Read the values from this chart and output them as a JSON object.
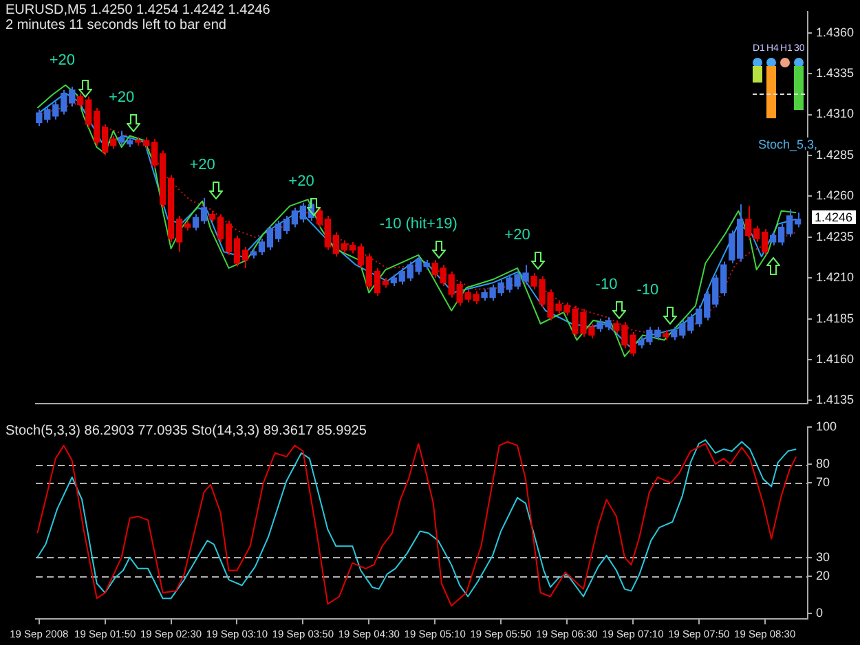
{
  "chart_data": [
    {
      "type": "candlestick",
      "title": "EURUSD,M5  1.4250 1.4254 1.4242 1.4246",
      "subtitle": "2 minutes 11 seconds left to bar end",
      "marker": "none",
      "tick_labels": "y",
      "xlim": [
        "2008-09-19T01:08",
        "2008-09-19T08:56"
      ],
      "ylim": [
        1.4133,
        1.4373
      ],
      "yticks": [
        1.4135,
        {
          "value": 1.416,
          "label": "1.4160"
        },
        1.4185,
        {
          "value": 1.421,
          "label": "1.4210"
        },
        1.4235,
        {
          "value": 1.426,
          "label": "1.4260"
        },
        1.4285,
        {
          "value": 1.431,
          "label": "1.4310"
        },
        1.4335,
        {
          "value": 1.436,
          "label": "1.4360"
        }
      ],
      "x": [
        "2008-09-19T01:10",
        "2008-09-19T01:15",
        "2008-09-19T01:20",
        "2008-09-19T01:25",
        "2008-09-19T01:30",
        "2008-09-19T01:35",
        "2008-09-19T01:40",
        "2008-09-19T01:45",
        "2008-09-19T01:50",
        "2008-09-19T01:55",
        "2008-09-19T02:00",
        "2008-09-19T02:05",
        "2008-09-19T02:10",
        "2008-09-19T02:15",
        "2008-09-19T02:20",
        "2008-09-19T02:25",
        "2008-09-19T02:30",
        "2008-09-19T02:35",
        "2008-09-19T02:40",
        "2008-09-19T02:45",
        "2008-09-19T02:50",
        "2008-09-19T02:55",
        "2008-09-19T03:00",
        "2008-09-19T03:05",
        "2008-09-19T03:10",
        "2008-09-19T03:15",
        "2008-09-19T03:20",
        "2008-09-19T03:25",
        "2008-09-19T03:30",
        "2008-09-19T03:35",
        "2008-09-19T03:40",
        "2008-09-19T03:45",
        "2008-09-19T03:50",
        "2008-09-19T03:55",
        "2008-09-19T04:00",
        "2008-09-19T04:05",
        "2008-09-19T04:10",
        "2008-09-19T04:15",
        "2008-09-19T04:20",
        "2008-09-19T04:25",
        "2008-09-19T04:30",
        "2008-09-19T04:35",
        "2008-09-19T04:40",
        "2008-09-19T04:45",
        "2008-09-19T04:50",
        "2008-09-19T04:55",
        "2008-09-19T05:00",
        "2008-09-19T05:05",
        "2008-09-19T05:10",
        "2008-09-19T05:15",
        "2008-09-19T05:20",
        "2008-09-19T05:25",
        "2008-09-19T05:30",
        "2008-09-19T05:35",
        "2008-09-19T05:40",
        "2008-09-19T05:45",
        "2008-09-19T05:50",
        "2008-09-19T05:55",
        "2008-09-19T06:00",
        "2008-09-19T06:05",
        "2008-09-19T06:10",
        "2008-09-19T06:15",
        "2008-09-19T06:20",
        "2008-09-19T06:25",
        "2008-09-19T06:30",
        "2008-09-19T06:35",
        "2008-09-19T06:40",
        "2008-09-19T06:45",
        "2008-09-19T06:50",
        "2008-09-19T06:55",
        "2008-09-19T07:00",
        "2008-09-19T07:05",
        "2008-09-19T07:10",
        "2008-09-19T07:15",
        "2008-09-19T07:20",
        "2008-09-19T07:25",
        "2008-09-19T07:30",
        "2008-09-19T07:35",
        "2008-09-19T07:40",
        "2008-09-19T07:45",
        "2008-09-19T07:50",
        "2008-09-19T07:55",
        "2008-09-19T08:00",
        "2008-09-19T08:05",
        "2008-09-19T08:10",
        "2008-09-19T08:15",
        "2008-09-19T08:20",
        "2008-09-19T08:25",
        "2008-09-19T08:30",
        "2008-09-19T08:35",
        "2008-09-19T08:40",
        "2008-09-19T08:45",
        "2008-09-19T08:50"
      ],
      "ohlc": [
        [
          1.4305,
          1.4313,
          1.4303,
          1.4311
        ],
        [
          1.4307,
          1.4315,
          1.4305,
          1.4313
        ],
        [
          1.4309,
          1.4318,
          1.4307,
          1.4316
        ],
        [
          1.4312,
          1.4325,
          1.431,
          1.4323
        ],
        [
          1.4317,
          1.4327,
          1.4315,
          1.4325
        ],
        [
          1.4321,
          1.4323,
          1.4314,
          1.4316
        ],
        [
          1.4319,
          1.4321,
          1.4302,
          1.4304
        ],
        [
          1.4312,
          1.4314,
          1.4291,
          1.4293
        ],
        [
          1.4302,
          1.4304,
          1.4285,
          1.4287
        ],
        [
          1.4295,
          1.4297,
          1.4289,
          1.4291
        ],
        [
          1.4293,
          1.43,
          1.4291,
          1.4296
        ],
        [
          1.4292,
          1.4296,
          1.429,
          1.4294
        ],
        [
          1.4294,
          1.4296,
          1.4291,
          1.4293
        ],
        [
          1.4294,
          1.4296,
          1.4289,
          1.4291
        ],
        [
          1.4293,
          1.4295,
          1.4277,
          1.4279
        ],
        [
          1.4286,
          1.4288,
          1.4253,
          1.4255
        ],
        [
          1.4271,
          1.4273,
          1.4232,
          1.4234
        ],
        [
          1.4246,
          1.4248,
          1.4226,
          1.4232
        ],
        [
          1.4243,
          1.4245,
          1.4239,
          1.4241
        ],
        [
          1.4241,
          1.4249,
          1.4239,
          1.4247
        ],
        [
          1.4245,
          1.4259,
          1.4243,
          1.4253
        ],
        [
          1.4249,
          1.4251,
          1.4244,
          1.4246
        ],
        [
          1.4247,
          1.4249,
          1.4232,
          1.4234
        ],
        [
          1.4243,
          1.4245,
          1.4224,
          1.4226
        ],
        [
          1.4234,
          1.4236,
          1.4217,
          1.4219
        ],
        [
          1.4227,
          1.4229,
          1.4216,
          1.4221
        ],
        [
          1.4224,
          1.4228,
          1.4222,
          1.4226
        ],
        [
          1.4226,
          1.4234,
          1.4224,
          1.4232
        ],
        [
          1.4229,
          1.4242,
          1.4227,
          1.424
        ],
        [
          1.4234,
          1.4245,
          1.4232,
          1.4243
        ],
        [
          1.4239,
          1.4248,
          1.4237,
          1.4246
        ],
        [
          1.4243,
          1.4253,
          1.4241,
          1.4251
        ],
        [
          1.4246,
          1.4256,
          1.4244,
          1.4254
        ],
        [
          1.4247,
          1.4258,
          1.4245,
          1.4255
        ],
        [
          1.4251,
          1.4253,
          1.4241,
          1.4243
        ],
        [
          1.4246,
          1.4248,
          1.4227,
          1.4229
        ],
        [
          1.4236,
          1.4238,
          1.4223,
          1.4225
        ],
        [
          1.4231,
          1.4233,
          1.4225,
          1.4227
        ],
        [
          1.423,
          1.4232,
          1.4225,
          1.4227
        ],
        [
          1.4229,
          1.4231,
          1.4216,
          1.4218
        ],
        [
          1.4223,
          1.4225,
          1.4203,
          1.4205
        ],
        [
          1.4214,
          1.4216,
          1.4199,
          1.4201
        ],
        [
          1.4208,
          1.421,
          1.4204,
          1.4206
        ],
        [
          1.4207,
          1.4212,
          1.4205,
          1.421
        ],
        [
          1.4208,
          1.4216,
          1.4206,
          1.4214
        ],
        [
          1.421,
          1.422,
          1.4208,
          1.4218
        ],
        [
          1.4214,
          1.4223,
          1.4212,
          1.4221
        ],
        [
          1.4217,
          1.4221,
          1.4215,
          1.4219
        ],
        [
          1.4219,
          1.4221,
          1.421,
          1.4212
        ],
        [
          1.4216,
          1.4218,
          1.4205,
          1.4207
        ],
        [
          1.4212,
          1.4214,
          1.4198,
          1.42
        ],
        [
          1.4206,
          1.4208,
          1.4193,
          1.4195
        ],
        [
          1.4201,
          1.4203,
          1.4195,
          1.4197
        ],
        [
          1.42,
          1.4202,
          1.4194,
          1.4196
        ],
        [
          1.4198,
          1.4203,
          1.4196,
          1.4201
        ],
        [
          1.4198,
          1.4206,
          1.4196,
          1.4204
        ],
        [
          1.4201,
          1.4209,
          1.4199,
          1.4207
        ],
        [
          1.4203,
          1.4212,
          1.4201,
          1.421
        ],
        [
          1.4205,
          1.4214,
          1.4203,
          1.4212
        ],
        [
          1.4208,
          1.4218,
          1.4206,
          1.4213
        ],
        [
          1.4211,
          1.4213,
          1.4203,
          1.4205
        ],
        [
          1.4209,
          1.4211,
          1.4192,
          1.4194
        ],
        [
          1.4201,
          1.4203,
          1.4184,
          1.4186
        ],
        [
          1.4194,
          1.4196,
          1.4188,
          1.419
        ],
        [
          1.4193,
          1.4195,
          1.4187,
          1.4189
        ],
        [
          1.4191,
          1.4193,
          1.4174,
          1.4176
        ],
        [
          1.4189,
          1.4191,
          1.4174,
          1.4176
        ],
        [
          1.418,
          1.4182,
          1.4173,
          1.4175
        ],
        [
          1.4179,
          1.4185,
          1.4177,
          1.4183
        ],
        [
          1.418,
          1.4186,
          1.4178,
          1.4184
        ],
        [
          1.4182,
          1.4184,
          1.4176,
          1.4178
        ],
        [
          1.4181,
          1.4183,
          1.4167,
          1.4169
        ],
        [
          1.4175,
          1.4177,
          1.4162,
          1.4164
        ],
        [
          1.4169,
          1.4174,
          1.4167,
          1.4172
        ],
        [
          1.4171,
          1.418,
          1.4169,
          1.4178
        ],
        [
          1.4174,
          1.418,
          1.4172,
          1.4178
        ],
        [
          1.4176,
          1.4178,
          1.4172,
          1.4174
        ],
        [
          1.4174,
          1.418,
          1.4172,
          1.4178
        ],
        [
          1.4175,
          1.4184,
          1.4173,
          1.4182
        ],
        [
          1.4178,
          1.4188,
          1.4176,
          1.4186
        ],
        [
          1.4182,
          1.4193,
          1.418,
          1.4191
        ],
        [
          1.4186,
          1.4202,
          1.4184,
          1.42
        ],
        [
          1.4194,
          1.4212,
          1.4192,
          1.421
        ],
        [
          1.4201,
          1.422,
          1.4199,
          1.4218
        ],
        [
          1.4221,
          1.4239,
          1.4219,
          1.4237
        ],
        [
          1.4222,
          1.4255,
          1.422,
          1.4246
        ],
        [
          1.4246,
          1.4254,
          1.4234,
          1.4236
        ],
        [
          1.424,
          1.4242,
          1.4232,
          1.4234
        ],
        [
          1.4238,
          1.424,
          1.4224,
          1.4226
        ],
        [
          1.4232,
          1.4238,
          1.423,
          1.4236
        ],
        [
          1.4232,
          1.4243,
          1.423,
          1.4241
        ],
        [
          1.4237,
          1.4252,
          1.4235,
          1.4248
        ],
        [
          1.4243,
          1.425,
          1.4241,
          1.4246
        ]
      ],
      "colors": [
        "#3b6fe0",
        "#3b6fe0",
        "#3b6fe0",
        "#3b6fe0",
        "#3b6fe0",
        "#e00000",
        "#e00000",
        "#e00000",
        "#e00000",
        "#e00000",
        "#3b6fe0",
        "#3b6fe0",
        "#e00000",
        "#e00000",
        "#e00000",
        "#e00000",
        "#e00000",
        "#e00000",
        "#e00000",
        "#3b6fe0",
        "#3b6fe0",
        "#e00000",
        "#e00000",
        "#e00000",
        "#e00000",
        "#e00000",
        "#3b6fe0",
        "#3b6fe0",
        "#3b6fe0",
        "#3b6fe0",
        "#3b6fe0",
        "#3b6fe0",
        "#3b6fe0",
        "#3b6fe0",
        "#e00000",
        "#e00000",
        "#e00000",
        "#e00000",
        "#e00000",
        "#e00000",
        "#e00000",
        "#e00000",
        "#e00000",
        "#3b6fe0",
        "#3b6fe0",
        "#3b6fe0",
        "#3b6fe0",
        "#3b6fe0",
        "#e00000",
        "#e00000",
        "#e00000",
        "#e00000",
        "#e00000",
        "#e00000",
        "#3b6fe0",
        "#3b6fe0",
        "#3b6fe0",
        "#3b6fe0",
        "#3b6fe0",
        "#3b6fe0",
        "#e00000",
        "#e00000",
        "#e00000",
        "#e00000",
        "#e00000",
        "#e00000",
        "#e00000",
        "#e00000",
        "#3b6fe0",
        "#3b6fe0",
        "#e00000",
        "#e00000",
        "#e00000",
        "#3b6fe0",
        "#3b6fe0",
        "#3b6fe0",
        "#e00000",
        "#3b6fe0",
        "#3b6fe0",
        "#3b6fe0",
        "#3b6fe0",
        "#3b6fe0",
        "#3b6fe0",
        "#3b6fe0",
        "#3b6fe0",
        "#3b6fe0",
        "#e00000",
        "#e00000",
        "#e00000",
        "#3b6fe0",
        "#3b6fe0",
        "#3b6fe0",
        "#3b6fe0"
      ],
      "series": [
        {
          "type": "line",
          "color": "#3fd43f",
          "x": [
            "2008-09-19T01:09",
            "2008-09-19T01:18",
            "2008-09-19T01:26",
            "2008-09-19T01:33",
            "2008-09-19T01:37",
            "2008-09-19T01:45",
            "2008-09-19T01:50",
            "2008-09-19T01:55",
            "2008-09-19T02:00",
            "2008-09-19T02:05",
            "2008-09-19T02:14",
            "2008-09-19T02:20",
            "2008-09-19T02:25",
            "2008-09-19T02:30",
            "2008-09-19T02:36",
            "2008-09-19T02:44",
            "2008-09-19T02:49",
            "2008-09-19T02:54",
            "2008-09-19T03:05",
            "2008-09-19T03:16",
            "2008-09-19T03:26",
            "2008-09-19T03:42",
            "2008-09-19T03:53",
            "2008-09-19T04:01",
            "2008-09-19T04:09",
            "2008-09-19T04:24",
            "2008-09-19T04:30",
            "2008-09-19T04:40",
            "2008-09-19T05:00",
            "2008-09-19T05:05",
            "2008-09-19T05:20",
            "2008-09-19T05:29",
            "2008-09-19T05:45",
            "2008-09-19T06:00",
            "2008-09-19T06:14",
            "2008-09-19T06:28",
            "2008-09-19T06:36",
            "2008-09-19T06:46",
            "2008-09-19T06:57",
            "2008-09-19T07:05",
            "2008-09-19T07:16",
            "2008-09-19T07:29",
            "2008-09-19T07:40",
            "2008-09-19T07:48",
            "2008-09-19T07:54",
            "2008-09-19T08:06",
            "2008-09-19T08:14",
            "2008-09-19T08:21",
            "2008-09-19T08:25",
            "2008-09-19T08:32",
            "2008-09-19T08:40",
            "2008-09-19T08:49"
          ],
          "values": [
            1.4314,
            1.4322,
            1.4328,
            1.4322,
            1.4309,
            1.429,
            1.4286,
            1.43,
            1.429,
            1.4297,
            1.4294,
            1.4279,
            1.4251,
            1.4228,
            1.424,
            1.4251,
            1.4257,
            1.424,
            1.4216,
            1.4221,
            1.4237,
            1.4254,
            1.4258,
            1.424,
            1.4228,
            1.4221,
            1.4201,
            1.4215,
            1.4224,
            1.4217,
            1.419,
            1.4204,
            1.4209,
            1.4216,
            1.4182,
            1.4189,
            1.4172,
            1.4184,
            1.4182,
            1.4162,
            1.4175,
            1.4172,
            1.4184,
            1.4193,
            1.4219,
            1.4237,
            1.4251,
            1.4234,
            1.4215,
            1.4226,
            1.4251,
            1.425
          ]
        },
        {
          "type": "line",
          "color": "#2a9cf0",
          "x": [
            "2008-09-19T01:10",
            "2008-09-19T01:26",
            "2008-09-19T01:34",
            "2008-09-19T01:48",
            "2008-09-19T01:53",
            "2008-09-19T02:01",
            "2008-09-19T02:14",
            "2008-09-19T02:28",
            "2008-09-19T02:36",
            "2008-09-19T02:46",
            "2008-09-19T02:52",
            "2008-09-19T03:02",
            "2008-09-19T03:13",
            "2008-09-19T03:26",
            "2008-09-19T03:48",
            "2008-09-19T04:04",
            "2008-09-19T04:22",
            "2008-09-19T04:41",
            "2008-09-19T05:00",
            "2008-09-19T05:05",
            "2008-09-19T05:21",
            "2008-09-19T05:45",
            "2008-09-19T06:01",
            "2008-09-19T06:17",
            "2008-09-19T06:33",
            "2008-09-19T06:44",
            "2008-09-19T06:54",
            "2008-09-19T07:08",
            "2008-09-19T07:21",
            "2008-09-19T07:37",
            "2008-09-19T07:50",
            "2008-09-19T07:58",
            "2008-09-19T08:14",
            "2008-09-19T08:22",
            "2008-09-19T08:28",
            "2008-09-19T08:38",
            "2008-09-19T08:49"
          ],
          "values": [
            1.4311,
            1.4323,
            1.4318,
            1.4293,
            1.4293,
            1.4297,
            1.4293,
            1.4246,
            1.4243,
            1.4253,
            1.4251,
            1.4226,
            1.4223,
            1.4237,
            1.4251,
            1.4234,
            1.4218,
            1.4208,
            1.4222,
            1.4219,
            1.4201,
            1.4207,
            1.4214,
            1.419,
            1.4182,
            1.418,
            1.4182,
            1.4168,
            1.4175,
            1.4179,
            1.419,
            1.4209,
            1.4243,
            1.4237,
            1.4223,
            1.4243,
            1.4246
          ]
        },
        {
          "type": "line",
          "color": "#d01010",
          "line_style": "dotted",
          "x": [
            "2008-09-19T01:10",
            "2008-09-19T01:34",
            "2008-09-19T01:48",
            "2008-09-19T02:14",
            "2008-09-19T02:28",
            "2008-09-19T02:41",
            "2008-09-19T02:54",
            "2008-09-19T03:10",
            "2008-09-19T03:21",
            "2008-09-19T03:37",
            "2008-09-19T03:56",
            "2008-09-19T04:04",
            "2008-09-19T04:20",
            "2008-09-19T04:41",
            "2008-09-19T05:05",
            "2008-09-19T05:34",
            "2008-09-19T05:50",
            "2008-09-19T06:09",
            "2008-09-19T06:28",
            "2008-09-19T06:54",
            "2008-09-19T07:10",
            "2008-09-19T07:29",
            "2008-09-19T07:48",
            "2008-09-19T08:00",
            "2008-09-19T08:12",
            "2008-09-19T08:20",
            "2008-09-19T08:33",
            "2008-09-19T08:49"
          ],
          "values": [
            1.431,
            1.4317,
            1.4303,
            1.4293,
            1.4271,
            1.4258,
            1.4252,
            1.4239,
            1.4235,
            1.4241,
            1.4252,
            1.4239,
            1.4229,
            1.4216,
            1.4218,
            1.4203,
            1.4204,
            1.4208,
            1.4194,
            1.4186,
            1.4178,
            1.4175,
            1.4182,
            1.4193,
            1.4218,
            1.4225,
            1.4232,
            1.4238
          ]
        }
      ],
      "annotations": [
        "+20",
        "+20",
        "+20",
        "+20",
        "-10 (hit+19)",
        "+20",
        "-10",
        "-10",
        "1.4246",
        "D1",
        "H4",
        "H1",
        "30",
        "Stoch_5,3,"
      ]
    },
    {
      "type": "line",
      "title": "Stoch(5,3,3) 86.2903 77.0935  Sto(14,3,3) 89.3617 85.9925",
      "marker": "none",
      "xlim": [
        "2008-09-19T01:08",
        "2008-09-19T08:56"
      ],
      "xticks": [
        {
          "value": "2008-09-19T01:10",
          "label": "19 Sep 2008"
        },
        {
          "value": "2008-09-19T01:50",
          "label": "19 Sep 01:50"
        },
        {
          "value": "2008-09-19T02:30",
          "label": "19 Sep 02:30"
        },
        {
          "value": "2008-09-19T03:10",
          "label": "19 Sep 03:10"
        },
        {
          "value": "2008-09-19T03:50",
          "label": "19 Sep 03:50"
        },
        {
          "value": "2008-09-19T04:30",
          "label": "19 Sep 04:30"
        },
        {
          "value": "2008-09-19T05:10",
          "label": "19 Sep 05:10"
        },
        {
          "value": "2008-09-19T05:50",
          "label": "19 Sep 05:50"
        },
        {
          "value": "2008-09-19T06:30",
          "label": "19 Sep 06:30"
        },
        {
          "value": "2008-09-19T07:10",
          "label": "19 Sep 07:10"
        },
        {
          "value": "2008-09-19T07:50",
          "label": "19 Sep 07:50"
        },
        {
          "value": "2008-09-19T08:30",
          "label": "19 Sep 08:30"
        }
      ],
      "ylim": [
        -3,
        100
      ],
      "yticks": [
        0,
        20,
        30,
        70,
        80,
        100
      ],
      "ref_lines": [
        {
          "axis": "y",
          "value": 20,
          "color": "#b0b0b0",
          "line_style": "dashed"
        },
        {
          "axis": "y",
          "value": 30,
          "color": "#b0b0b0",
          "line_style": "dashed"
        },
        {
          "axis": "y",
          "value": 70,
          "color": "#b0b0b0",
          "line_style": "dashed"
        },
        {
          "axis": "y",
          "value": 80,
          "color": "#b0b0b0",
          "line_style": "dashed"
        }
      ],
      "series": [
        {
          "color": "#e00000",
          "x": [
            "2008-09-19T01:09",
            "2008-09-19T01:20",
            "2008-09-19T01:25",
            "2008-09-19T01:30",
            "2008-09-19T01:37",
            "2008-09-19T01:45",
            "2008-09-19T01:50",
            "2008-09-19T02:00",
            "2008-09-19T02:05",
            "2008-09-19T02:10",
            "2008-09-19T02:16",
            "2008-09-19T02:25",
            "2008-09-19T02:33",
            "2008-09-19T02:38",
            "2008-09-19T02:50",
            "2008-09-19T02:54",
            "2008-09-19T03:00",
            "2008-09-19T03:05",
            "2008-09-19T03:10",
            "2008-09-19T03:18",
            "2008-09-19T03:26",
            "2008-09-19T03:33",
            "2008-09-19T03:40",
            "2008-09-19T03:45",
            "2008-09-19T03:50",
            "2008-09-19T03:58",
            "2008-09-19T04:05",
            "2008-09-19T04:12",
            "2008-09-19T04:20",
            "2008-09-19T04:28",
            "2008-09-19T04:33",
            "2008-09-19T04:38",
            "2008-09-19T04:44",
            "2008-09-19T04:49",
            "2008-09-19T04:54",
            "2008-09-19T05:00",
            "2008-09-19T05:05",
            "2008-09-19T05:09",
            "2008-09-19T05:14",
            "2008-09-19T05:20",
            "2008-09-19T05:29",
            "2008-09-19T05:38",
            "2008-09-19T05:49",
            "2008-09-19T05:54",
            "2008-09-19T06:00",
            "2008-09-19T06:05",
            "2008-09-19T06:14",
            "2008-09-19T06:20",
            "2008-09-19T06:29",
            "2008-09-19T06:40",
            "2008-09-19T06:49",
            "2008-09-19T06:54",
            "2008-09-19T07:00",
            "2008-09-19T07:05",
            "2008-09-19T07:09",
            "2008-09-19T07:14",
            "2008-09-19T07:20",
            "2008-09-19T07:25",
            "2008-09-19T07:33",
            "2008-09-19T07:38",
            "2008-09-19T07:45",
            "2008-09-19T07:54",
            "2008-09-19T08:00",
            "2008-09-19T08:05",
            "2008-09-19T08:09",
            "2008-09-19T08:16",
            "2008-09-19T08:21",
            "2008-09-19T08:29",
            "2008-09-19T08:34",
            "2008-09-19T08:40",
            "2008-09-19T08:45",
            "2008-09-19T08:49"
          ],
          "values": [
            43,
            83,
            90,
            82,
            45,
            8,
            11,
            30,
            51,
            52,
            50,
            11,
            12,
            21,
            65,
            69,
            54,
            23,
            23,
            36,
            70,
            86,
            84,
            90,
            87,
            45,
            5,
            9,
            27,
            24,
            26,
            36,
            43,
            61,
            72,
            91,
            74,
            59,
            16,
            4,
            11,
            36,
            90,
            92,
            90,
            72,
            11,
            9,
            22,
            13,
            47,
            61,
            52,
            30,
            26,
            41,
            65,
            73,
            70,
            75,
            87,
            91,
            80,
            83,
            80,
            89,
            83,
            59,
            40,
            63,
            77,
            84
          ]
        },
        {
          "color": "#28c8dc",
          "x": [
            "2008-09-19T01:09",
            "2008-09-19T01:14",
            "2008-09-19T01:21",
            "2008-09-19T01:30",
            "2008-09-19T01:36",
            "2008-09-19T01:45",
            "2008-09-19T01:50",
            "2008-09-19T01:56",
            "2008-09-19T02:01",
            "2008-09-19T02:05",
            "2008-09-19T02:10",
            "2008-09-19T02:16",
            "2008-09-19T02:25",
            "2008-09-19T02:30",
            "2008-09-19T02:38",
            "2008-09-19T02:52",
            "2008-09-19T02:56",
            "2008-09-19T03:05",
            "2008-09-19T03:13",
            "2008-09-19T03:21",
            "2008-09-19T03:29",
            "2008-09-19T03:40",
            "2008-09-19T03:49",
            "2008-09-19T03:54",
            "2008-09-19T04:05",
            "2008-09-19T04:10",
            "2008-09-19T04:20",
            "2008-09-19T04:25",
            "2008-09-19T04:32",
            "2008-09-19T04:36",
            "2008-09-19T04:41",
            "2008-09-19T04:46",
            "2008-09-19T04:53",
            "2008-09-19T05:01",
            "2008-09-19T05:06",
            "2008-09-19T05:12",
            "2008-09-19T05:20",
            "2008-09-19T05:25",
            "2008-09-19T05:30",
            "2008-09-19T05:36",
            "2008-09-19T05:45",
            "2008-09-19T05:50",
            "2008-09-19T06:00",
            "2008-09-19T06:05",
            "2008-09-19T06:16",
            "2008-09-19T06:20",
            "2008-09-19T06:25",
            "2008-09-19T06:30",
            "2008-09-19T06:40",
            "2008-09-19T06:49",
            "2008-09-19T06:54",
            "2008-09-19T07:00",
            "2008-09-19T07:05",
            "2008-09-19T07:09",
            "2008-09-19T07:14",
            "2008-09-19T07:21",
            "2008-09-19T07:26",
            "2008-09-19T07:34",
            "2008-09-19T07:40",
            "2008-09-19T07:45",
            "2008-09-19T07:50",
            "2008-09-19T07:54",
            "2008-09-19T08:00",
            "2008-09-19T08:05",
            "2008-09-19T08:10",
            "2008-09-19T08:16",
            "2008-09-19T08:21",
            "2008-09-19T08:29",
            "2008-09-19T08:34",
            "2008-09-19T08:38",
            "2008-09-19T08:44",
            "2008-09-19T08:49"
          ],
          "values": [
            30,
            37,
            56,
            73,
            61,
            16,
            11,
            19,
            23,
            30,
            24,
            24,
            8,
            8,
            18,
            39,
            37,
            18,
            15,
            25,
            41,
            71,
            86,
            83,
            45,
            36,
            36,
            23,
            14,
            13,
            21,
            24,
            32,
            44,
            43,
            39,
            26,
            15,
            9,
            17,
            31,
            44,
            62,
            59,
            23,
            14,
            19,
            21,
            9,
            25,
            31,
            23,
            13,
            12,
            21,
            39,
            46,
            49,
            63,
            81,
            91,
            93,
            86,
            88,
            87,
            92,
            88,
            72,
            68,
            81,
            87,
            88
          ]
        }
      ]
    }
  ]
}
